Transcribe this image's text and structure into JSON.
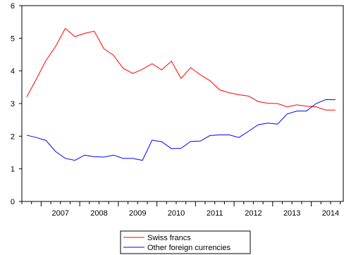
{
  "chart_data": {
    "type": "line",
    "title": "",
    "xlabel": "",
    "ylabel": "",
    "ylim": [
      0,
      6
    ],
    "y_ticks": [
      0,
      1,
      2,
      3,
      4,
      5,
      6
    ],
    "x_range": [
      2006.5,
      2014.83
    ],
    "x_year_labels": [
      "2007",
      "2008",
      "2009",
      "2010",
      "2011",
      "2012",
      "2013",
      "2014"
    ],
    "grid": false,
    "legend_position": "bottom-center",
    "x": [
      2006.625,
      2006.875,
      2007.125,
      2007.375,
      2007.625,
      2007.875,
      2008.125,
      2008.375,
      2008.625,
      2008.875,
      2009.125,
      2009.375,
      2009.625,
      2009.875,
      2010.125,
      2010.375,
      2010.625,
      2010.875,
      2011.125,
      2011.375,
      2011.625,
      2011.875,
      2012.125,
      2012.375,
      2012.625,
      2012.875,
      2013.125,
      2013.375,
      2013.625,
      2013.875,
      2014.125,
      2014.375,
      2014.625
    ],
    "series": [
      {
        "name": "Swiss francs",
        "color": "#ff0000",
        "values": [
          3.2,
          3.75,
          4.32,
          4.75,
          5.3,
          5.05,
          5.15,
          5.22,
          4.68,
          4.48,
          4.08,
          3.92,
          4.05,
          4.22,
          4.03,
          4.3,
          3.77,
          4.1,
          3.88,
          3.7,
          3.42,
          3.33,
          3.27,
          3.23,
          3.06,
          3.01,
          3.0,
          2.9,
          2.96,
          2.92,
          2.9,
          2.8,
          2.8
        ]
      },
      {
        "name": "Other foreign currencies",
        "color": "#0000ff",
        "values": [
          2.03,
          1.96,
          1.87,
          1.53,
          1.32,
          1.26,
          1.42,
          1.37,
          1.36,
          1.42,
          1.32,
          1.32,
          1.26,
          1.88,
          1.83,
          1.62,
          1.63,
          1.84,
          1.85,
          2.02,
          2.04,
          2.04,
          1.96,
          2.15,
          2.35,
          2.4,
          2.37,
          2.68,
          2.77,
          2.77,
          3.0,
          3.12,
          3.12
        ]
      }
    ]
  }
}
